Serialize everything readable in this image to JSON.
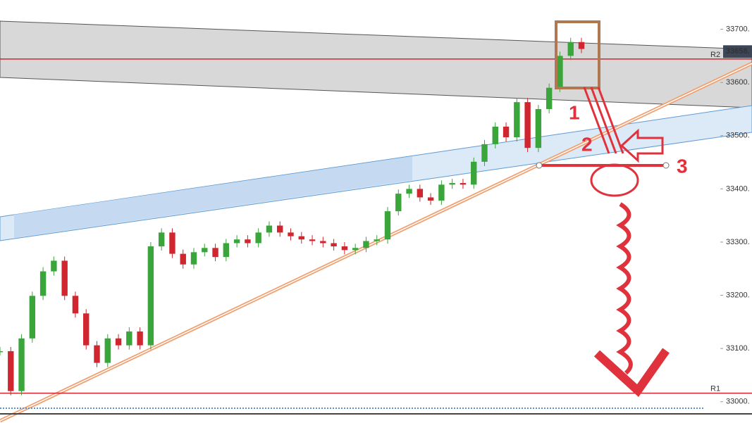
{
  "chart_data": {
    "type": "candlestick",
    "values": [
      33095,
      33020,
      33119,
      33199,
      33245,
      33265,
      33199,
      33166,
      33106,
      33073,
      33119,
      33106,
      33132,
      33106,
      33292,
      33318,
      33278,
      33258,
      33281,
      33289,
      33272,
      33298,
      33305,
      33298,
      33318,
      33331,
      33318,
      33311,
      33305,
      33302,
      33298,
      33292,
      33285,
      33289,
      33302,
      33305,
      33358,
      33391,
      33400,
      33384,
      33378,
      33408,
      33411,
      33408,
      33451,
      33484,
      33517,
      33497,
      33563,
      33477,
      33550,
      33590,
      33650,
      33676,
      33663
    ],
    "up_color": "#3aa53a",
    "down_color": "#d0262f",
    "ylim": [
      32960,
      33755
    ],
    "yticks": [
      {
        "value": 33000,
        "label": "33000."
      },
      {
        "value": 33100,
        "label": "33100."
      },
      {
        "value": 33200,
        "label": "33200."
      },
      {
        "value": 33300,
        "label": "33300."
      },
      {
        "value": 33400,
        "label": "33400."
      },
      {
        "value": 33500,
        "label": "33500."
      },
      {
        "value": 33600,
        "label": "33600."
      },
      {
        "value": 33700,
        "label": "33700."
      }
    ],
    "levels": [
      {
        "name": "R2",
        "value": 33644,
        "color": "#d0262f"
      },
      {
        "name": "R1",
        "value": 33016,
        "color": "#d0262f"
      }
    ],
    "last_price": {
      "value": 33658,
      "label": "33658."
    },
    "annotations": [
      "1",
      "2",
      "3"
    ]
  }
}
